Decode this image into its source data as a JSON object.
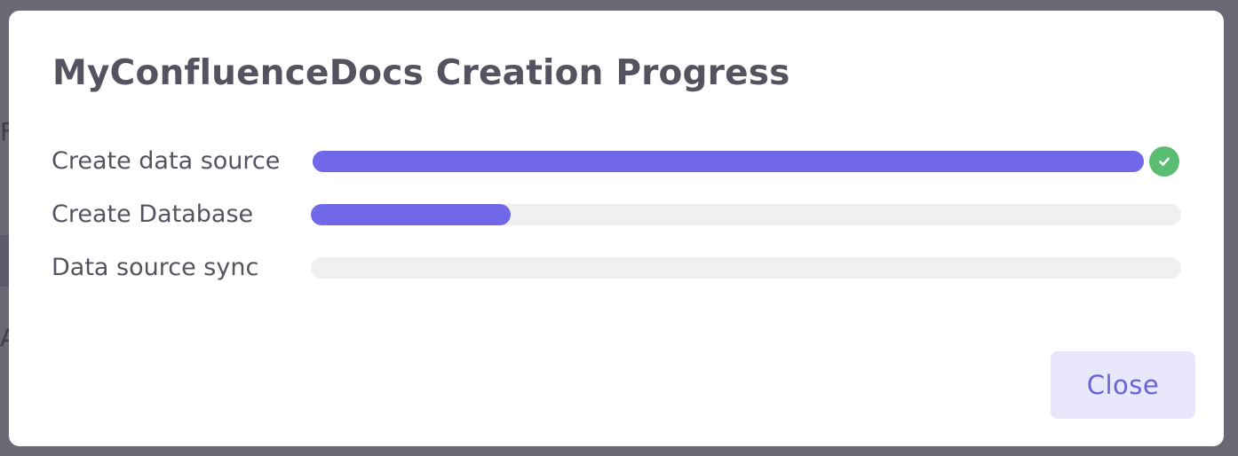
{
  "modal": {
    "title": "MyConfluenceDocs Creation Progress",
    "close_label": "Close"
  },
  "steps": [
    {
      "label": "Create data source",
      "progress": 1.0,
      "status": "complete",
      "status_icon": "check-circle-icon"
    },
    {
      "label": "Create Database",
      "progress": 0.23,
      "status": "in-progress"
    },
    {
      "label": "Data source sync",
      "progress": 0.0,
      "status": "pending"
    }
  ],
  "colors": {
    "accent": "#7068e8",
    "track": "#f0f0f2",
    "success": "#5bbd72",
    "button_bg": "#e8e7fb",
    "button_text": "#6a63d8",
    "overlay": "#6b6876"
  }
}
